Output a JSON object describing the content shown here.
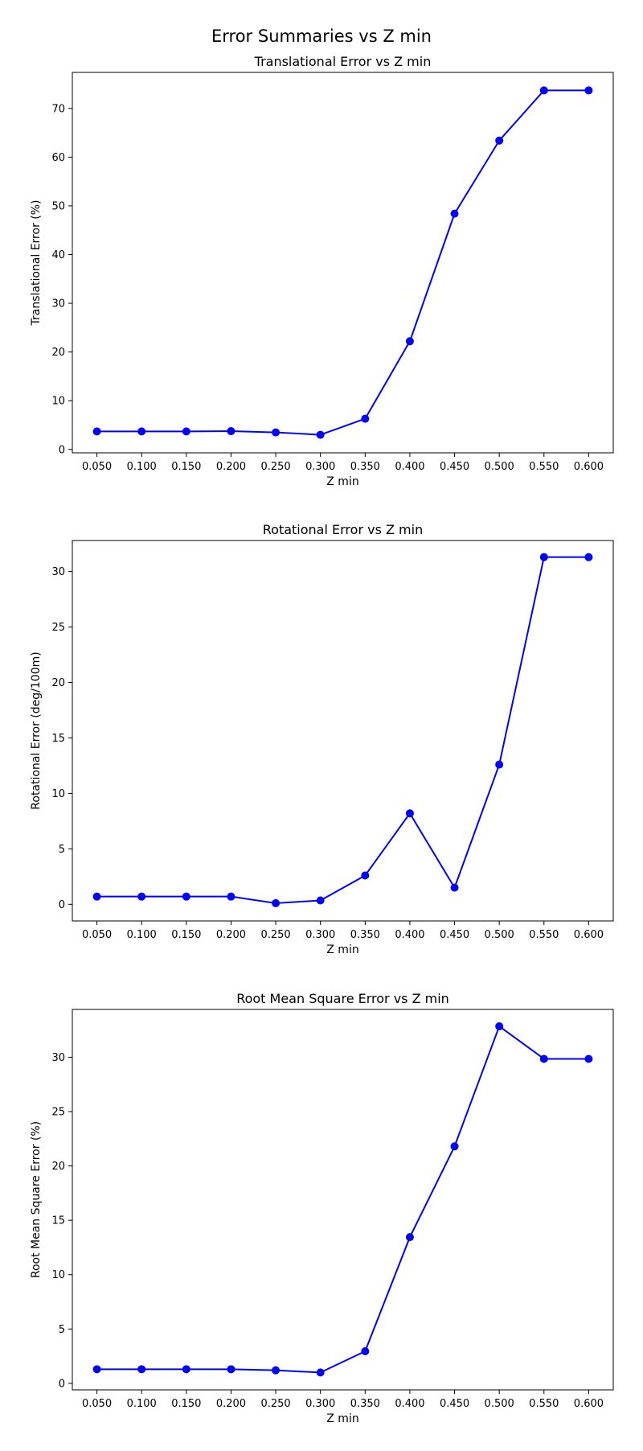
{
  "figure": {
    "title": "Error Summaries vs Z min"
  },
  "colors": {
    "series": "#0000ff",
    "axis": "#000000",
    "background": "#ffffff"
  },
  "chart_data": [
    {
      "type": "line",
      "title": "Translational Error vs Z min",
      "xlabel": "Z min",
      "ylabel": "Translational Error (%)",
      "x": [
        0.05,
        0.1,
        0.15,
        0.2,
        0.25,
        0.3,
        0.35,
        0.4,
        0.45,
        0.5,
        0.55,
        0.6
      ],
      "xticks": [
        "0.050",
        "0.100",
        "0.150",
        "0.200",
        "0.250",
        "0.300",
        "0.350",
        "0.400",
        "0.450",
        "0.500",
        "0.550",
        "0.600"
      ],
      "xlim": [
        0.0225,
        0.6275
      ],
      "values": [
        3.7,
        3.7,
        3.7,
        3.75,
        3.5,
        3.0,
        6.3,
        22.2,
        48.4,
        63.4,
        73.7,
        73.7
      ],
      "ylim": [
        -0.7,
        77.4
      ],
      "yticks": [
        0,
        10,
        20,
        30,
        40,
        50,
        60,
        70
      ],
      "grid": false,
      "marker": "circle"
    },
    {
      "type": "line",
      "title": "Rotational Error vs Z min",
      "xlabel": "Z min",
      "ylabel": "Rotational Error (deg/100m)",
      "x": [
        0.05,
        0.1,
        0.15,
        0.2,
        0.25,
        0.3,
        0.35,
        0.4,
        0.45,
        0.5,
        0.55,
        0.6
      ],
      "xticks": [
        "0.050",
        "0.100",
        "0.150",
        "0.200",
        "0.250",
        "0.300",
        "0.350",
        "0.400",
        "0.450",
        "0.500",
        "0.550",
        "0.600"
      ],
      "xlim": [
        0.0225,
        0.6275
      ],
      "values": [
        0.7,
        0.7,
        0.7,
        0.7,
        0.1,
        0.35,
        2.6,
        8.2,
        1.5,
        12.6,
        31.3,
        31.3
      ],
      "ylim": [
        -1.5,
        32.8
      ],
      "yticks": [
        0,
        5,
        10,
        15,
        20,
        25,
        30
      ],
      "grid": false,
      "marker": "circle"
    },
    {
      "type": "line",
      "title": "Root Mean Square Error vs Z min",
      "xlabel": "Z min",
      "ylabel": "Root Mean Square Error (%)",
      "x": [
        0.05,
        0.1,
        0.15,
        0.2,
        0.25,
        0.3,
        0.35,
        0.4,
        0.45,
        0.5,
        0.55,
        0.6
      ],
      "xticks": [
        "0.050",
        "0.100",
        "0.150",
        "0.200",
        "0.250",
        "0.300",
        "0.350",
        "0.400",
        "0.450",
        "0.500",
        "0.550",
        "0.600"
      ],
      "xlim": [
        0.0225,
        0.6275
      ],
      "values": [
        1.3,
        1.3,
        1.3,
        1.3,
        1.2,
        1.0,
        2.95,
        13.45,
        21.8,
        32.85,
        29.85,
        29.85
      ],
      "ylim": [
        -0.6,
        34.4
      ],
      "yticks": [
        0,
        5,
        10,
        15,
        20,
        25,
        30
      ],
      "grid": false,
      "marker": "circle"
    }
  ]
}
